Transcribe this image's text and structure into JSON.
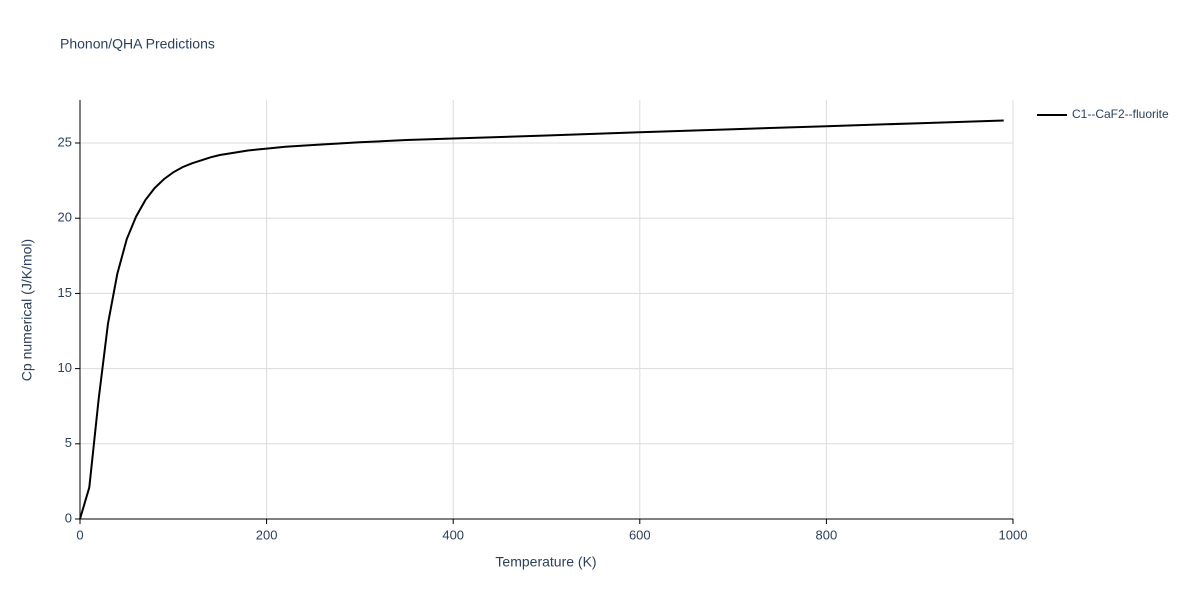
{
  "chart_data": {
    "type": "line",
    "title": "Phonon/QHA Predictions",
    "x_label": "Temperature (K)",
    "y_label": "Cp numerical (J/K/mol)",
    "x": [
      0,
      10,
      20,
      30,
      40,
      50,
      60,
      70,
      80,
      90,
      100,
      110,
      120,
      130,
      140,
      150,
      160,
      170,
      180,
      190,
      200,
      220,
      250,
      300,
      350,
      400,
      500,
      600,
      700,
      800,
      900,
      990
    ],
    "series": [
      {
        "name": "C1--CaF2--fluorite",
        "color": "#000000",
        "values": [
          0,
          2.1,
          8.0,
          13.0,
          16.3,
          18.6,
          20.1,
          21.2,
          22.0,
          22.6,
          23.05,
          23.4,
          23.65,
          23.85,
          24.05,
          24.2,
          24.3,
          24.4,
          24.5,
          24.57,
          24.63,
          24.75,
          24.87,
          25.05,
          25.2,
          25.3,
          25.5,
          25.72,
          25.92,
          26.12,
          26.32,
          26.5
        ]
      }
    ],
    "xlim": [
      0,
      1000
    ],
    "xticks": [
      0,
      200,
      400,
      600,
      800,
      1000
    ],
    "ylim": [
      0,
      27.86
    ],
    "yticks": [
      0,
      5,
      10,
      15,
      20,
      25
    ],
    "grid": true,
    "legend": "right"
  }
}
